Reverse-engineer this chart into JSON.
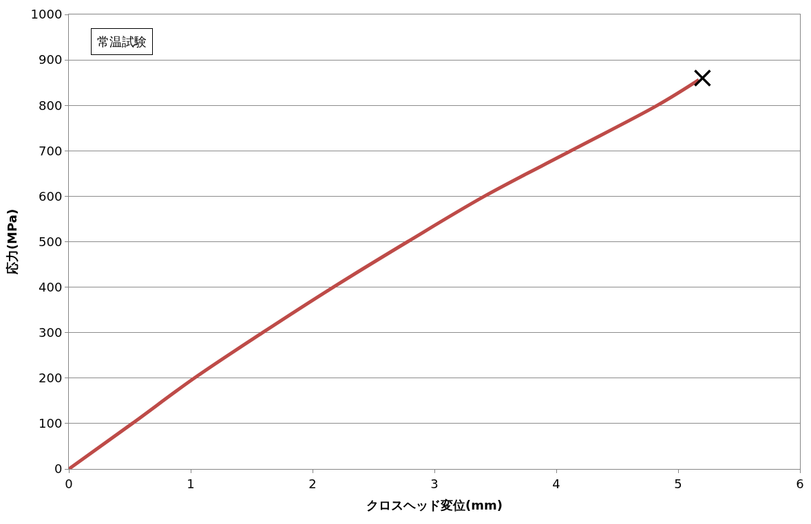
{
  "chart_data": {
    "type": "line",
    "xlabel": "クロスヘッド変位(mm)",
    "ylabel": "応力(MPa)",
    "annotations": [
      "常温試験"
    ],
    "xlim": [
      0,
      6
    ],
    "xticks": [
      0,
      1,
      2,
      3,
      4,
      5,
      6
    ],
    "ylim": [
      0,
      1000
    ],
    "yticks": [
      0,
      100,
      200,
      300,
      400,
      500,
      600,
      700,
      800,
      900,
      1000
    ],
    "grid": "y",
    "legend": false,
    "series": [
      {
        "color": "#be4b48",
        "marker": "none",
        "line_style": "solid",
        "x": [
          0,
          0.52,
          1.03,
          1.59,
          2.17,
          2.78,
          3.41,
          4.12,
          4.83,
          5.17
        ],
        "values": [
          0,
          100,
          200,
          300,
          400,
          500,
          600,
          700,
          800,
          856
        ]
      },
      {
        "type": "scatter",
        "color": "#000000",
        "marker": "cross",
        "x": [
          5.2
        ],
        "values": [
          860
        ]
      }
    ]
  }
}
